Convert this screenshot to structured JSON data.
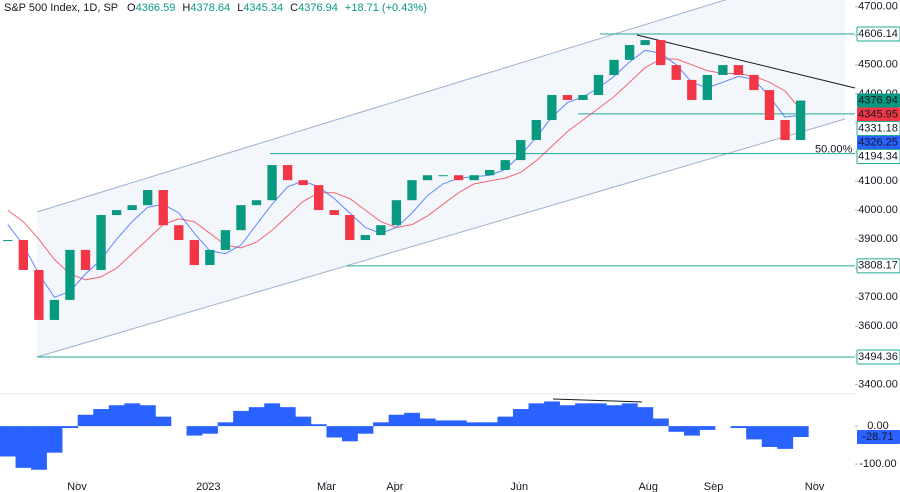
{
  "header": {
    "symbol": "S&P 500 Index, 1D, SP",
    "open_label": "O",
    "open": 4366.59,
    "high_label": "H",
    "high": 4378.64,
    "low_label": "L",
    "low": 4345.34,
    "close_label": "C",
    "close": 4376.94,
    "change": "+18.71 (+0.43%)"
  },
  "chart_data": [
    {
      "type": "candlestick",
      "categories": [
        null,
        null,
        null,
        null,
        null,
        null,
        null,
        null,
        null,
        null,
        null,
        null,
        null,
        null,
        null,
        null,
        null,
        null,
        null,
        null,
        null,
        null,
        null,
        null,
        null,
        null,
        null,
        null,
        null,
        null,
        null,
        null,
        null,
        null,
        null,
        null,
        null,
        null,
        null,
        null,
        null,
        null,
        null,
        null,
        null,
        null,
        null,
        null,
        null,
        null,
        null,
        null
      ],
      "close": [
        3897,
        3794,
        3622,
        3691,
        3863,
        3794,
        3983,
        4000,
        4017,
        4069,
        3948,
        3897,
        3811,
        3863,
        3931,
        4017,
        4034,
        4155,
        4103,
        4086,
        4000,
        3983,
        3897,
        3914,
        3948,
        4034,
        4103,
        4120,
        4120,
        4103,
        4120,
        4138,
        4172,
        4241,
        4310,
        4396,
        4379,
        4396,
        4465,
        4517,
        4568,
        4585,
        4499,
        4448,
        4379,
        4465,
        4499,
        4465,
        4413,
        4310,
        4241,
        4376.94
      ],
      "up_color": "#089981",
      "down_color": "#f23645",
      "ma_fast": {
        "color": "#2962ff",
        "values": [
          3950,
          3880,
          3780,
          3700,
          3720,
          3780,
          3830,
          3900,
          3960,
          4010,
          4020,
          3990,
          3920,
          3860,
          3850,
          3880,
          3950,
          4020,
          4080,
          4100,
          4080,
          4040,
          3990,
          3940,
          3920,
          3940,
          3990,
          4050,
          4090,
          4110,
          4115,
          4120,
          4140,
          4190,
          4250,
          4320,
          4370,
          4390,
          4420,
          4460,
          4510,
          4550,
          4540,
          4500,
          4440,
          4420,
          4440,
          4460,
          4450,
          4390,
          4320,
          4326.25
        ]
      },
      "ma_slow": {
        "color": "#f23645",
        "values": [
          4000,
          3960,
          3900,
          3830,
          3780,
          3760,
          3770,
          3800,
          3850,
          3900,
          3950,
          3970,
          3960,
          3920,
          3880,
          3870,
          3890,
          3930,
          3980,
          4030,
          4060,
          4060,
          4040,
          4000,
          3960,
          3940,
          3950,
          3980,
          4020,
          4060,
          4090,
          4100,
          4110,
          4130,
          4170,
          4220,
          4270,
          4310,
          4350,
          4390,
          4440,
          4490,
          4520,
          4520,
          4500,
          4480,
          4470,
          4470,
          4460,
          4440,
          4410,
          4345.95
        ]
      },
      "levels": [
        4606.14,
        4331.18,
        4194.34,
        3808.17,
        3494.36
      ],
      "level_color": "#22ab94",
      "annotation": "50.00%",
      "xlim": [
        -0.5,
        54.5
      ],
      "xticks": [
        {
          "value": 4.45,
          "label": "Nov"
        },
        {
          "value": 12.9,
          "label": "2023"
        },
        {
          "value": 20.5,
          "label": "Mar"
        },
        {
          "value": 24.9,
          "label": "Apr"
        },
        {
          "value": 32.9,
          "label": "Jun"
        },
        {
          "value": 41.2,
          "label": "Aug"
        },
        {
          "value": 45.4,
          "label": "Sep"
        },
        {
          "value": 51.9,
          "label": "Nov"
        }
      ],
      "ylim": [
        3374,
        4723
      ],
      "yticks": [
        {
          "value": 3400,
          "label": "3400.00"
        },
        {
          "value": 3500,
          "label": "3500.00"
        },
        {
          "value": 3600,
          "label": "3600.00"
        },
        {
          "value": 3700,
          "label": "3700.00"
        },
        {
          "value": 3800,
          "label": "3800.00"
        },
        {
          "value": 3900,
          "label": "3900.00"
        },
        {
          "value": 4000,
          "label": "4000.00"
        },
        {
          "value": 4100,
          "label": "4100.00"
        },
        {
          "value": 4200,
          "label": "4200.00"
        },
        {
          "value": 4300,
          "label": "4300.00"
        },
        {
          "value": 4400,
          "label": "4400.00"
        },
        {
          "value": 4500,
          "label": "4500.00"
        },
        {
          "value": 4600,
          "label": "4600.00"
        },
        {
          "value": 4700,
          "label": "4700.00"
        }
      ]
    },
    {
      "type": "bar",
      "values": [
        -80,
        -110,
        -115,
        -70,
        -5,
        30,
        45,
        55,
        60,
        55,
        25,
        0,
        -25,
        -20,
        10,
        40,
        50,
        60,
        50,
        25,
        5,
        -30,
        -40,
        -20,
        10,
        30,
        35,
        20,
        15,
        15,
        10,
        10,
        25,
        45,
        60,
        65,
        55,
        60,
        60,
        55,
        60,
        50,
        20,
        -15,
        -25,
        -10,
        0,
        -5,
        -35,
        -55,
        -60,
        -28.71
      ],
      "color": "#2962ff",
      "ylim": [
        -142,
        82
      ],
      "yticks": [
        {
          "value": 0,
          "label": "0.00"
        },
        {
          "value": -100,
          "label": "-100.00"
        }
      ]
    }
  ]
}
